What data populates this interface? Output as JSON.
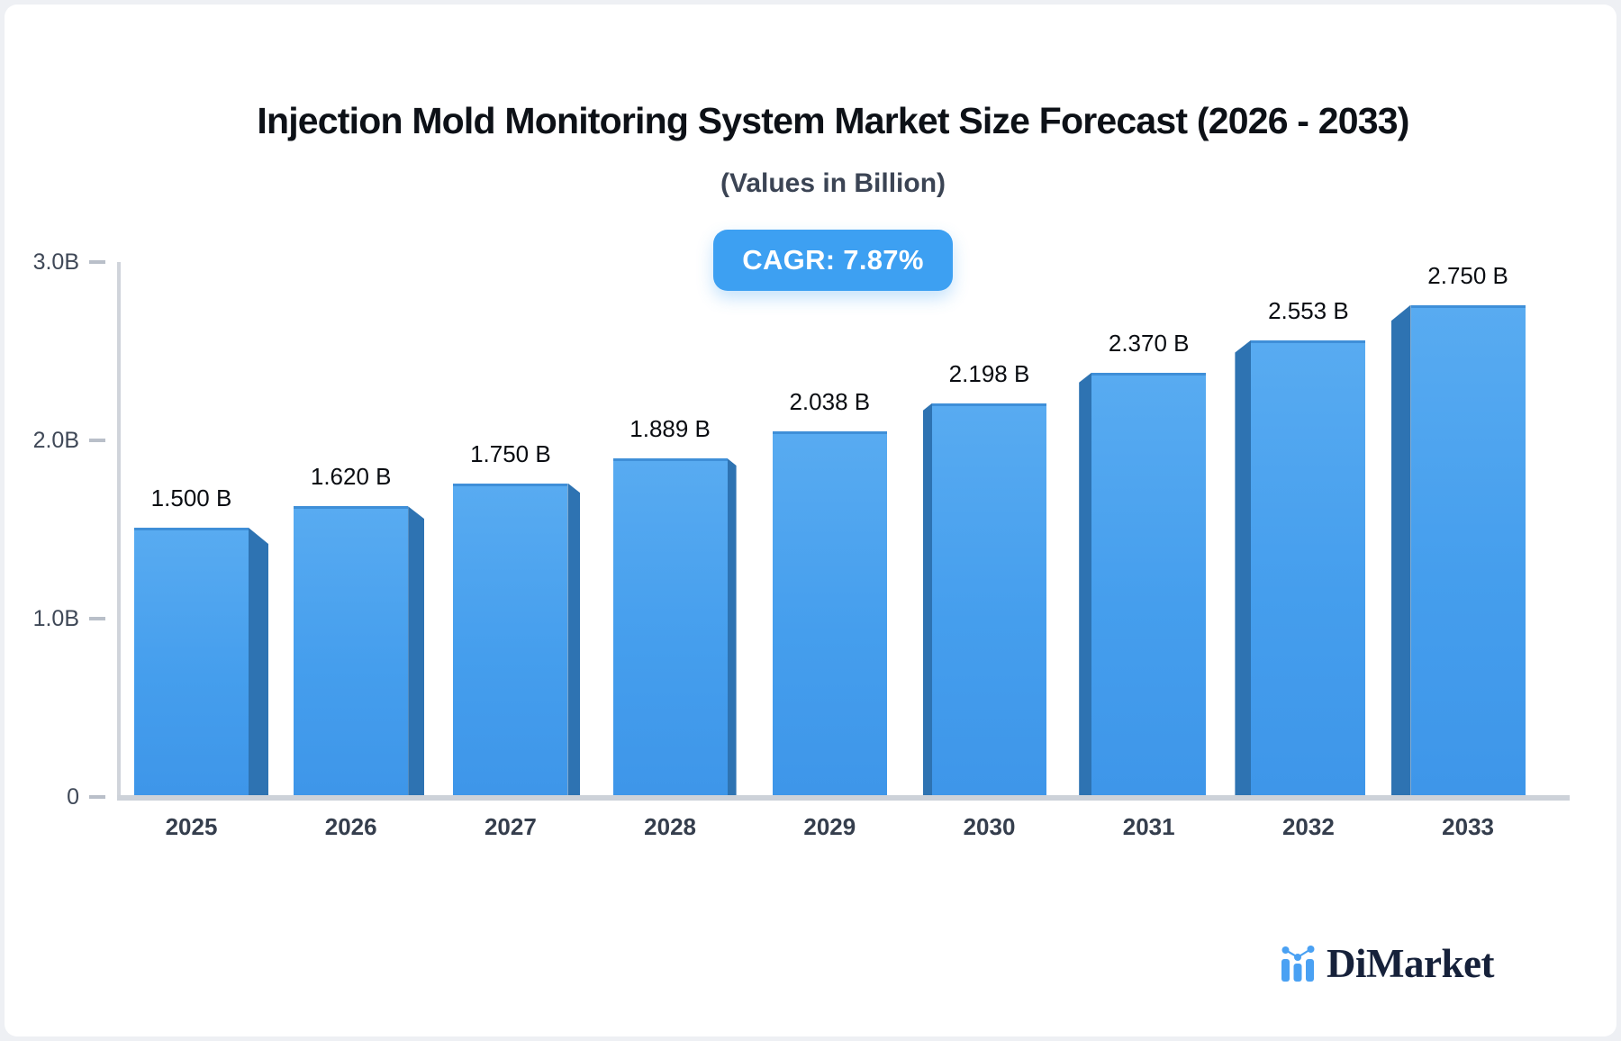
{
  "title": "Injection Mold Monitoring System Market Size Forecast (2026 - 2033)",
  "subtitle": "(Values in Billion)",
  "badge": {
    "label": "CAGR: 7.87%"
  },
  "logo": {
    "name": "DiMarket",
    "icon": "bar-line-chart-icon"
  },
  "chart_data": {
    "type": "bar",
    "title": "Injection Mold Monitoring System Market Size Forecast (2026 - 2033)",
    "subtitle": "(Values in Billion)",
    "cagr_label": "CAGR: 7.87%",
    "categories": [
      "2025",
      "2026",
      "2027",
      "2028",
      "2029",
      "2030",
      "2031",
      "2032",
      "2033"
    ],
    "values": [
      1.5,
      1.62,
      1.75,
      1.889,
      2.038,
      2.198,
      2.37,
      2.553,
      2.75
    ],
    "value_labels": [
      "1.500 B",
      "1.620 B",
      "1.750 B",
      "1.889 B",
      "2.038 B",
      "2.198 B",
      "2.370 B",
      "2.553 B",
      "2.750 B"
    ],
    "unit": "Billion",
    "xlabel": "",
    "ylabel": "",
    "ylim": [
      0,
      3.0
    ],
    "yticks": [
      {
        "value": 0,
        "label": "0"
      },
      {
        "value": 1,
        "label": "1.0B"
      },
      {
        "value": 2,
        "label": "2.0B"
      },
      {
        "value": 3,
        "label": "3.0B"
      }
    ],
    "grid": false,
    "legend": false,
    "colors": {
      "bar_face_top": "#58abf1",
      "bar_face_bottom": "#3e96e9",
      "bar_side": "#2e73b2",
      "badge_bg": "#3da0f2",
      "axis_line": "#cdd2d9",
      "value_text": "#0a0d12",
      "axis_text": "#3f4857",
      "logo_blue": "#4aa1f3",
      "logo_navy": "#16213a"
    }
  }
}
